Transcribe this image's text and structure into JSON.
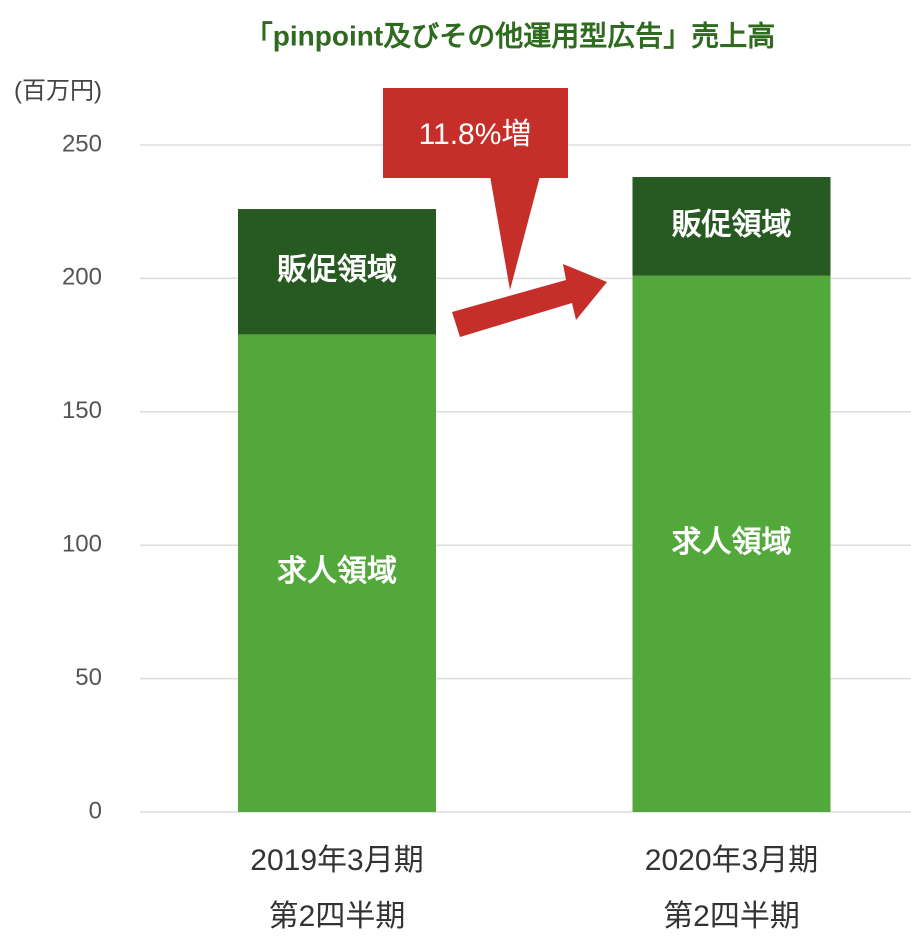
{
  "chart_data": {
    "type": "stacked_bar",
    "title": "「pinpoint及びその他運用型広告」売上高",
    "y_axis_label": "(百万円)",
    "annotation": "11.8%増",
    "categories": [
      [
        "2019年3月期",
        "第2四半期"
      ],
      [
        "2020年3月期",
        "第2四半期"
      ]
    ],
    "series": [
      {
        "name": "求人領域",
        "color": "#52a83a",
        "values": [
          179,
          201
        ]
      },
      {
        "name": "販促領域",
        "color": "#265a20",
        "values": [
          47,
          37
        ]
      }
    ],
    "ylim": [
      0,
      250
    ],
    "yticks": [
      0,
      50,
      100,
      150,
      200,
      250
    ],
    "grid": true
  }
}
